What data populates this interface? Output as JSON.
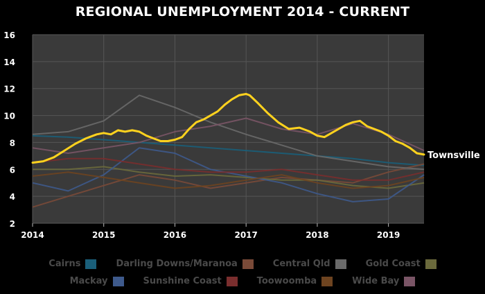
{
  "chart_data": {
    "type": "line",
    "title": "REGIONAL UNEMPLOYMENT 2014 - CURRENT",
    "xlabel": "",
    "ylabel": "",
    "xlim": [
      2014,
      2019.5
    ],
    "ylim": [
      2,
      16
    ],
    "x_ticks": [
      2014,
      2015,
      2016,
      2017,
      2018,
      2019
    ],
    "y_ticks": [
      2,
      4,
      6,
      8,
      10,
      12,
      14,
      16
    ],
    "grid": true,
    "highlight_label": "Townsville",
    "highlight_color": "#FFD21E",
    "highlight_series": {
      "name": "Townsville",
      "x": [
        2014.0,
        2014.15,
        2014.3,
        2014.45,
        2014.6,
        2014.75,
        2014.9,
        2015.0,
        2015.1,
        2015.2,
        2015.3,
        2015.4,
        2015.5,
        2015.6,
        2015.7,
        2015.8,
        2015.9,
        2016.0,
        2016.1,
        2016.2,
        2016.3,
        2016.4,
        2016.5,
        2016.6,
        2016.7,
        2016.8,
        2016.9,
        2017.0,
        2017.05,
        2017.15,
        2017.3,
        2017.45,
        2017.6,
        2017.75,
        2017.9,
        2018.0,
        2018.1,
        2018.2,
        2018.3,
        2018.4,
        2018.5,
        2018.6,
        2018.7,
        2018.8,
        2018.9,
        2019.0,
        2019.1,
        2019.2,
        2019.3,
        2019.4,
        2019.5
      ],
      "values": [
        6.5,
        6.6,
        6.9,
        7.4,
        7.9,
        8.3,
        8.6,
        8.7,
        8.6,
        8.9,
        8.8,
        8.9,
        8.8,
        8.5,
        8.3,
        8.1,
        8.1,
        8.2,
        8.4,
        9.0,
        9.5,
        9.7,
        10.0,
        10.3,
        10.8,
        11.2,
        11.5,
        11.6,
        11.5,
        11.0,
        10.2,
        9.5,
        9.0,
        9.1,
        8.8,
        8.5,
        8.4,
        8.7,
        9.0,
        9.3,
        9.5,
        9.6,
        9.2,
        9.0,
        8.8,
        8.5,
        8.1,
        7.9,
        7.6,
        7.2,
        7.1
      ]
    },
    "series": [
      {
        "name": "Cairns",
        "color": "#1A5F7A",
        "x": [
          2014.0,
          2014.5,
          2015.0,
          2015.5,
          2016.0,
          2016.5,
          2017.0,
          2017.5,
          2018.0,
          2018.5,
          2019.0,
          2019.5
        ],
        "values": [
          8.5,
          8.4,
          8.2,
          8.0,
          7.8,
          7.6,
          7.4,
          7.2,
          7.0,
          6.8,
          6.5,
          6.3
        ]
      },
      {
        "name": "Darling Downs/Maranoa",
        "color": "#7A4A38",
        "x": [
          2014.0,
          2014.5,
          2015.0,
          2015.5,
          2016.0,
          2016.5,
          2017.0,
          2017.5,
          2018.0,
          2018.5,
          2019.0,
          2019.5
        ],
        "values": [
          3.2,
          4.0,
          4.8,
          5.6,
          5.2,
          4.6,
          5.0,
          5.4,
          5.2,
          5.0,
          5.8,
          6.4
        ]
      },
      {
        "name": "Central Qld",
        "color": "#6A6A6A",
        "x": [
          2014.0,
          2014.5,
          2015.0,
          2015.5,
          2016.0,
          2016.5,
          2017.0,
          2017.5,
          2018.0,
          2018.5,
          2019.0,
          2019.5
        ],
        "values": [
          8.6,
          8.8,
          9.6,
          11.5,
          10.6,
          9.5,
          8.6,
          7.8,
          7.0,
          6.6,
          6.2,
          6.0
        ]
      },
      {
        "name": "Gold Coast",
        "color": "#6B6A3C",
        "x": [
          2014.0,
          2014.5,
          2015.0,
          2015.5,
          2016.0,
          2016.5,
          2017.0,
          2017.5,
          2018.0,
          2018.5,
          2019.0,
          2019.5
        ],
        "values": [
          6.0,
          6.0,
          6.2,
          5.8,
          5.5,
          5.6,
          5.4,
          5.2,
          5.2,
          4.8,
          4.6,
          5.0
        ]
      },
      {
        "name": "Mackay",
        "color": "#3E5A8C",
        "x": [
          2014.0,
          2014.5,
          2015.0,
          2015.5,
          2016.0,
          2016.5,
          2017.0,
          2017.5,
          2018.0,
          2018.5,
          2019.0,
          2019.5
        ],
        "values": [
          5.0,
          4.4,
          5.6,
          7.6,
          7.2,
          6.0,
          5.5,
          5.0,
          4.2,
          3.6,
          3.8,
          5.6
        ]
      },
      {
        "name": "Sunshine Coast",
        "color": "#7A2E2E",
        "x": [
          2014.0,
          2014.5,
          2015.0,
          2015.5,
          2016.0,
          2016.5,
          2017.0,
          2017.5,
          2018.0,
          2018.5,
          2019.0,
          2019.5
        ],
        "values": [
          6.5,
          6.8,
          6.8,
          6.4,
          6.0,
          5.8,
          5.8,
          6.0,
          5.6,
          5.2,
          5.2,
          5.8
        ]
      },
      {
        "name": "Toowoomba",
        "color": "#6E4420",
        "x": [
          2014.0,
          2014.5,
          2015.0,
          2015.5,
          2016.0,
          2016.5,
          2017.0,
          2017.5,
          2018.0,
          2018.5,
          2019.0,
          2019.5
        ],
        "values": [
          5.5,
          5.8,
          5.4,
          5.0,
          4.6,
          4.8,
          5.2,
          5.6,
          5.0,
          4.6,
          4.8,
          5.4
        ]
      },
      {
        "name": "Wide Bay",
        "color": "#7A5566",
        "x": [
          2014.0,
          2014.5,
          2015.0,
          2015.5,
          2016.0,
          2016.5,
          2017.0,
          2017.5,
          2018.0,
          2018.5,
          2019.0,
          2019.5
        ],
        "values": [
          7.6,
          7.2,
          7.6,
          8.0,
          8.8,
          9.2,
          9.8,
          9.0,
          8.6,
          9.4,
          8.6,
          7.4
        ]
      }
    ],
    "legend_rows": [
      [
        "Cairns",
        "Darling Downs/Maranoa",
        "Central Qld",
        "Gold Coast"
      ],
      [
        "Mackay",
        "Sunshine Coast",
        "Toowoomba",
        "Wide Bay"
      ]
    ],
    "legend_placement": "bottom"
  }
}
